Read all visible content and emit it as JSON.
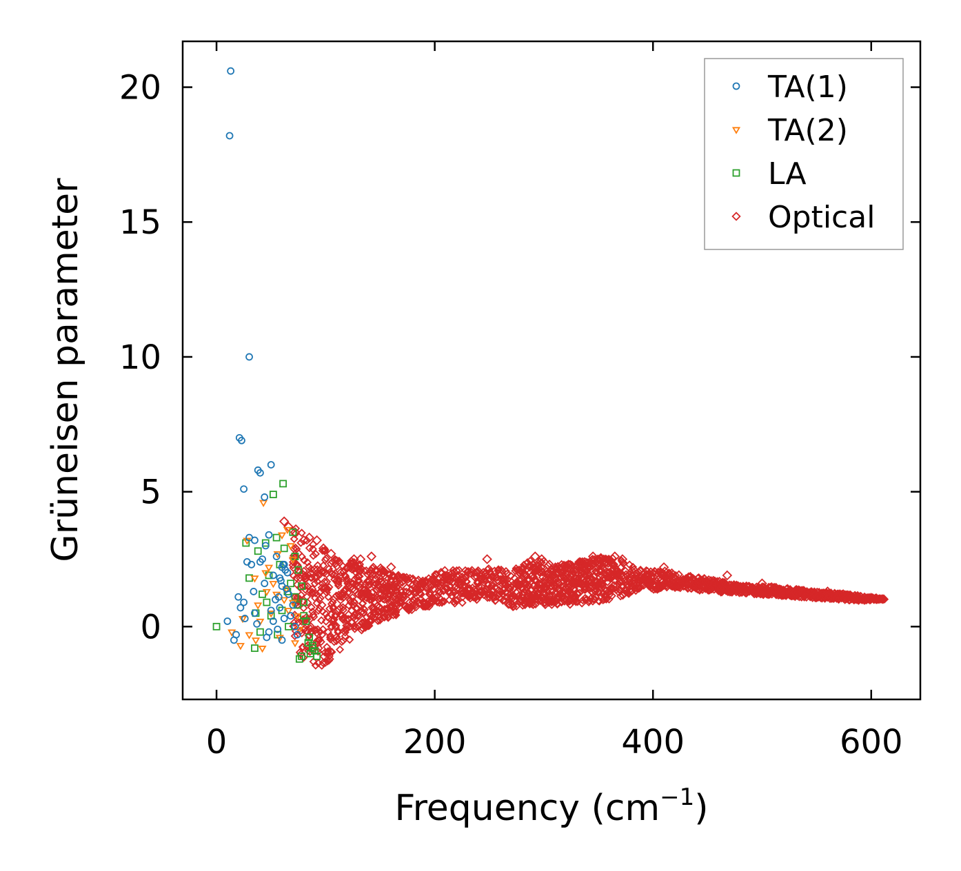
{
  "chart_data": {
    "type": "scatter",
    "xlabel": "Frequency (cm",
    "xlabel_sup": "−1",
    "xlabel_close": ")",
    "ylabel": "Grüneisen parameter",
    "xlim": [
      -31,
      645
    ],
    "ylim": [
      -2.7,
      21.7
    ],
    "xticks": [
      0,
      200,
      400,
      600
    ],
    "yticks": [
      0,
      5,
      10,
      15,
      20
    ],
    "grid": false,
    "legend_position": "top-right",
    "legend": [
      {
        "label": "TA(1)",
        "marker": "circle",
        "color": "#1f77b4"
      },
      {
        "label": "TA(2)",
        "marker": "triangle-down",
        "color": "#ff7f0e"
      },
      {
        "label": "LA",
        "marker": "square",
        "color": "#2ca02c"
      },
      {
        "label": "Optical",
        "marker": "diamond",
        "color": "#d62728"
      }
    ],
    "series": [
      {
        "name": "TA(1)",
        "color": "#1f77b4",
        "marker": "circle",
        "x": [
          13,
          12,
          30,
          21,
          23,
          25,
          38,
          40,
          44,
          50,
          35,
          30,
          45,
          32,
          55,
          60,
          62,
          65,
          48,
          52,
          58,
          40,
          28,
          42,
          20,
          22,
          18,
          16,
          10,
          25,
          35,
          50,
          60,
          66,
          70,
          62,
          56,
          46,
          37,
          26,
          54,
          64,
          68,
          72,
          74,
          60,
          58,
          44,
          34,
          52,
          48,
          63,
          59,
          61,
          57
        ],
        "y": [
          20.6,
          18.2,
          10.0,
          7.0,
          6.9,
          5.1,
          5.8,
          5.7,
          4.8,
          6.0,
          3.2,
          3.3,
          3.0,
          2.3,
          2.6,
          2.2,
          2.3,
          2.0,
          3.4,
          1.9,
          1.8,
          2.4,
          2.4,
          2.5,
          1.1,
          0.7,
          -0.3,
          -0.5,
          0.2,
          0.9,
          0.5,
          0.6,
          1.5,
          1.2,
          0.8,
          0.3,
          -0.1,
          -0.4,
          0.1,
          0.3,
          1.0,
          1.4,
          0.4,
          0.0,
          -0.3,
          -0.5,
          0.7,
          1.6,
          1.3,
          0.2,
          -0.2,
          2.1,
          1.7,
          2.3,
          1.1
        ]
      },
      {
        "name": "TA(2)",
        "color": "#ff7f0e",
        "marker": "triangle-down",
        "x": [
          43,
          28,
          35,
          45,
          60,
          65,
          68,
          70,
          55,
          50,
          40,
          30,
          22,
          14,
          48,
          52,
          62,
          66,
          72,
          58,
          38,
          42,
          64,
          70,
          76,
          56,
          46,
          36,
          24,
          74
        ],
        "y": [
          4.6,
          3.2,
          1.8,
          2.0,
          3.4,
          3.6,
          3.0,
          2.5,
          1.2,
          0.5,
          0.2,
          -0.3,
          -0.7,
          -0.2,
          2.2,
          1.6,
          1.0,
          0.6,
          -0.6,
          -0.4,
          0.8,
          -0.8,
          1.4,
          0.9,
          -0.1,
          2.7,
          1.3,
          -0.5,
          0.3,
          0.4
        ]
      },
      {
        "name": "LA",
        "color": "#2ca02c",
        "marker": "square",
        "x": [
          0,
          52,
          61,
          27,
          30,
          38,
          45,
          55,
          70,
          72,
          75,
          78,
          80,
          82,
          85,
          88,
          90,
          92,
          65,
          60,
          50,
          40,
          35,
          48,
          58,
          68,
          74,
          84,
          86,
          76,
          66,
          56,
          46,
          42,
          36,
          62,
          72,
          80,
          88,
          78
        ],
        "y": [
          0.0,
          4.9,
          5.3,
          3.1,
          1.8,
          2.8,
          3.1,
          3.3,
          3.5,
          2.6,
          2.1,
          1.5,
          0.9,
          0.2,
          -0.4,
          -0.8,
          -0.9,
          -1.1,
          1.3,
          0.6,
          0.4,
          -0.2,
          -0.8,
          1.9,
          2.3,
          1.6,
          0.8,
          -0.6,
          -1.0,
          -1.2,
          0.0,
          -0.3,
          0.9,
          1.2,
          0.5,
          2.9,
          1.1,
          0.4,
          -0.7,
          -1.1
        ]
      },
      {
        "name": "Optical",
        "color": "#d62728",
        "marker": "diamond",
        "envelope": {
          "x": [
            70,
            80,
            95,
            110,
            130,
            150,
            170,
            190,
            210,
            230,
            250,
            270,
            290,
            310,
            330,
            350,
            370,
            390,
            410,
            430,
            450,
            470,
            490,
            510,
            530,
            550,
            570,
            590,
            612
          ],
          "upper": [
            3.9,
            3.4,
            3.0,
            2.6,
            2.4,
            2.2,
            1.9,
            1.8,
            2.1,
            2.1,
            2.2,
            2.1,
            2.5,
            2.3,
            2.4,
            2.6,
            2.5,
            2.1,
            2.1,
            1.9,
            1.8,
            1.6,
            1.5,
            1.5,
            1.4,
            1.3,
            1.25,
            1.15,
            1.05
          ],
          "lower": [
            -0.8,
            -1.2,
            -1.7,
            -1.0,
            -0.2,
            0.2,
            0.5,
            0.7,
            0.8,
            0.9,
            1.0,
            0.7,
            0.8,
            0.8,
            0.8,
            0.9,
            1.1,
            1.3,
            1.4,
            1.4,
            1.3,
            1.25,
            1.2,
            1.15,
            1.1,
            1.05,
            1.0,
            0.95,
            1.0
          ]
        },
        "outliers": {
          "x": [
            62,
            66,
            72,
            80,
            85,
            92,
            98,
            105,
            126,
            132,
            142,
            160,
            248,
            292,
            298,
            300,
            345,
            352,
            365,
            372,
            410,
            468,
            500,
            560
          ],
          "y": [
            3.9,
            3.7,
            3.5,
            3.2,
            3.3,
            3.2,
            2.9,
            2.7,
            2.5,
            2.5,
            2.6,
            2.2,
            2.5,
            2.6,
            2.5,
            2.4,
            2.6,
            2.5,
            2.6,
            2.5,
            2.2,
            1.9,
            1.6,
            1.3
          ]
        }
      }
    ]
  }
}
